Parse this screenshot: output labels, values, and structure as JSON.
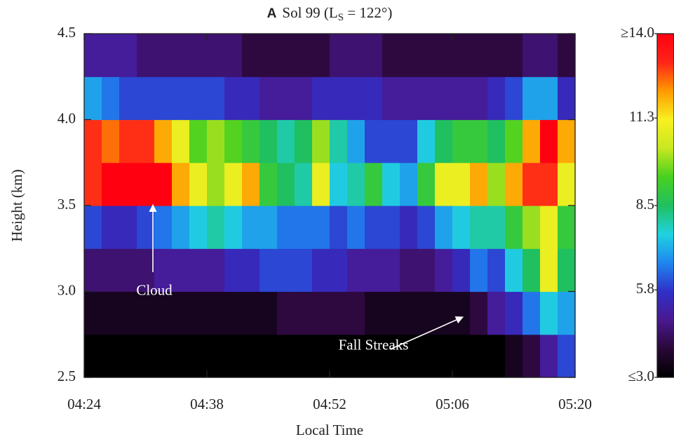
{
  "chart_data": {
    "type": "heatmap",
    "panel": "A",
    "title": "Sol 99 (L",
    "title_sub": "S",
    "title_end": " = 122°)",
    "x_label": "Local Time",
    "y_label": "Height (km)",
    "xlim": [
      "04:24",
      "05:20"
    ],
    "xticks": [
      "04:24",
      "04:38",
      "04:52",
      "05:06",
      "05:20"
    ],
    "ylim": [
      2.5,
      4.5
    ],
    "yticks": [
      {
        "value": 2.5,
        "label": "2.5"
      },
      {
        "value": 3,
        "label": "3.0"
      },
      {
        "value": 3.5,
        "label": "3.5"
      },
      {
        "value": 4,
        "label": "4.0"
      },
      {
        "value": 4.5,
        "label": "4.5"
      }
    ],
    "x": [
      "04:24",
      "04:26",
      "04:28",
      "04:30",
      "04:32",
      "04:34",
      "04:36",
      "04:38",
      "04:40",
      "04:42",
      "04:44",
      "04:46",
      "04:48",
      "04:50",
      "04:52",
      "04:54",
      "04:56",
      "04:58",
      "05:00",
      "05:02",
      "05:04",
      "05:06",
      "05:08",
      "05:10",
      "05:12",
      "05:14",
      "05:16",
      "05:18"
    ],
    "y": [
      2.5,
      2.75,
      3,
      3.25,
      3.5,
      3.75,
      4,
      4.25
    ],
    "z": [
      [
        3,
        3,
        3,
        3,
        3,
        3,
        3,
        3,
        3,
        3,
        3,
        3,
        3,
        3,
        3,
        3,
        3,
        3,
        3,
        3,
        3,
        3,
        3,
        3,
        3.5,
        4,
        5,
        6
      ],
      [
        3.5,
        3.5,
        3.5,
        3.5,
        3.5,
        3.5,
        3.5,
        3.5,
        3.5,
        3.5,
        3.5,
        4,
        4,
        4,
        4,
        4,
        3.5,
        3.5,
        3.5,
        3.5,
        3.5,
        3.5,
        4,
        5,
        5.5,
        6.5,
        7.5,
        7
      ],
      [
        4.5,
        4.5,
        4.5,
        4.5,
        5,
        5,
        5,
        5,
        5.5,
        5.5,
        6,
        6,
        6,
        5.5,
        5.5,
        5,
        5,
        5,
        4.5,
        4.5,
        5,
        5.5,
        6.5,
        6,
        7.5,
        8.5,
        11,
        8.5
      ],
      [
        6,
        5.5,
        5.5,
        6,
        6.5,
        7,
        7.5,
        8,
        7.5,
        7,
        7,
        6.5,
        6.5,
        6.5,
        6,
        6.5,
        6,
        6,
        5.5,
        6,
        7,
        7.5,
        8,
        8,
        9,
        10,
        11,
        9
      ],
      [
        13,
        14,
        14,
        14,
        14,
        12,
        11,
        10,
        11,
        12,
        9,
        8.5,
        8,
        11,
        7.5,
        8,
        9,
        7.5,
        7,
        9,
        11,
        11,
        12,
        10,
        12,
        13,
        13,
        11
      ],
      [
        13,
        12.5,
        13,
        13,
        12,
        11,
        9.5,
        10,
        9.5,
        9,
        8.5,
        8,
        8.5,
        10,
        8,
        7,
        6,
        6,
        6,
        7.5,
        8.5,
        9,
        9,
        8.5,
        9.5,
        12,
        14,
        12
      ],
      [
        7,
        6.5,
        6,
        6,
        6,
        6,
        6,
        6,
        5.5,
        5.5,
        5,
        5,
        5,
        5.5,
        5.5,
        5.5,
        5.5,
        5,
        5,
        5,
        5,
        5,
        5,
        5.5,
        6,
        7,
        7,
        5.5
      ],
      [
        5,
        5,
        5,
        4.5,
        4.5,
        4.5,
        4.5,
        4.5,
        4.5,
        4,
        4,
        4,
        4,
        4,
        4.5,
        4.5,
        4.5,
        4,
        4,
        4,
        4,
        4,
        4,
        4,
        4,
        4.5,
        4.5,
        4
      ]
    ],
    "clim": [
      3,
      14
    ],
    "cticks": [
      {
        "value": 3,
        "label": "≤3.0"
      },
      {
        "value": 5.8,
        "label": "5.8"
      },
      {
        "value": 8.5,
        "label": "8.5"
      },
      {
        "value": 11.3,
        "label": "11.3"
      },
      {
        "value": 14,
        "label": "≥14.0"
      }
    ],
    "colormap": [
      "#000000",
      "#2a0838",
      "#4a1890",
      "#3030c8",
      "#1f86f0",
      "#20d2e0",
      "#20c060",
      "#48d020",
      "#c8e820",
      "#f8f020",
      "#ff9a00",
      "#ff2418",
      "#ff0010"
    ],
    "annotations": [
      {
        "text": "Cloud",
        "x": "04:32",
        "y": 3.0
      },
      {
        "text": "Fall Streaks",
        "x": "04:57",
        "y": 2.68
      }
    ]
  }
}
